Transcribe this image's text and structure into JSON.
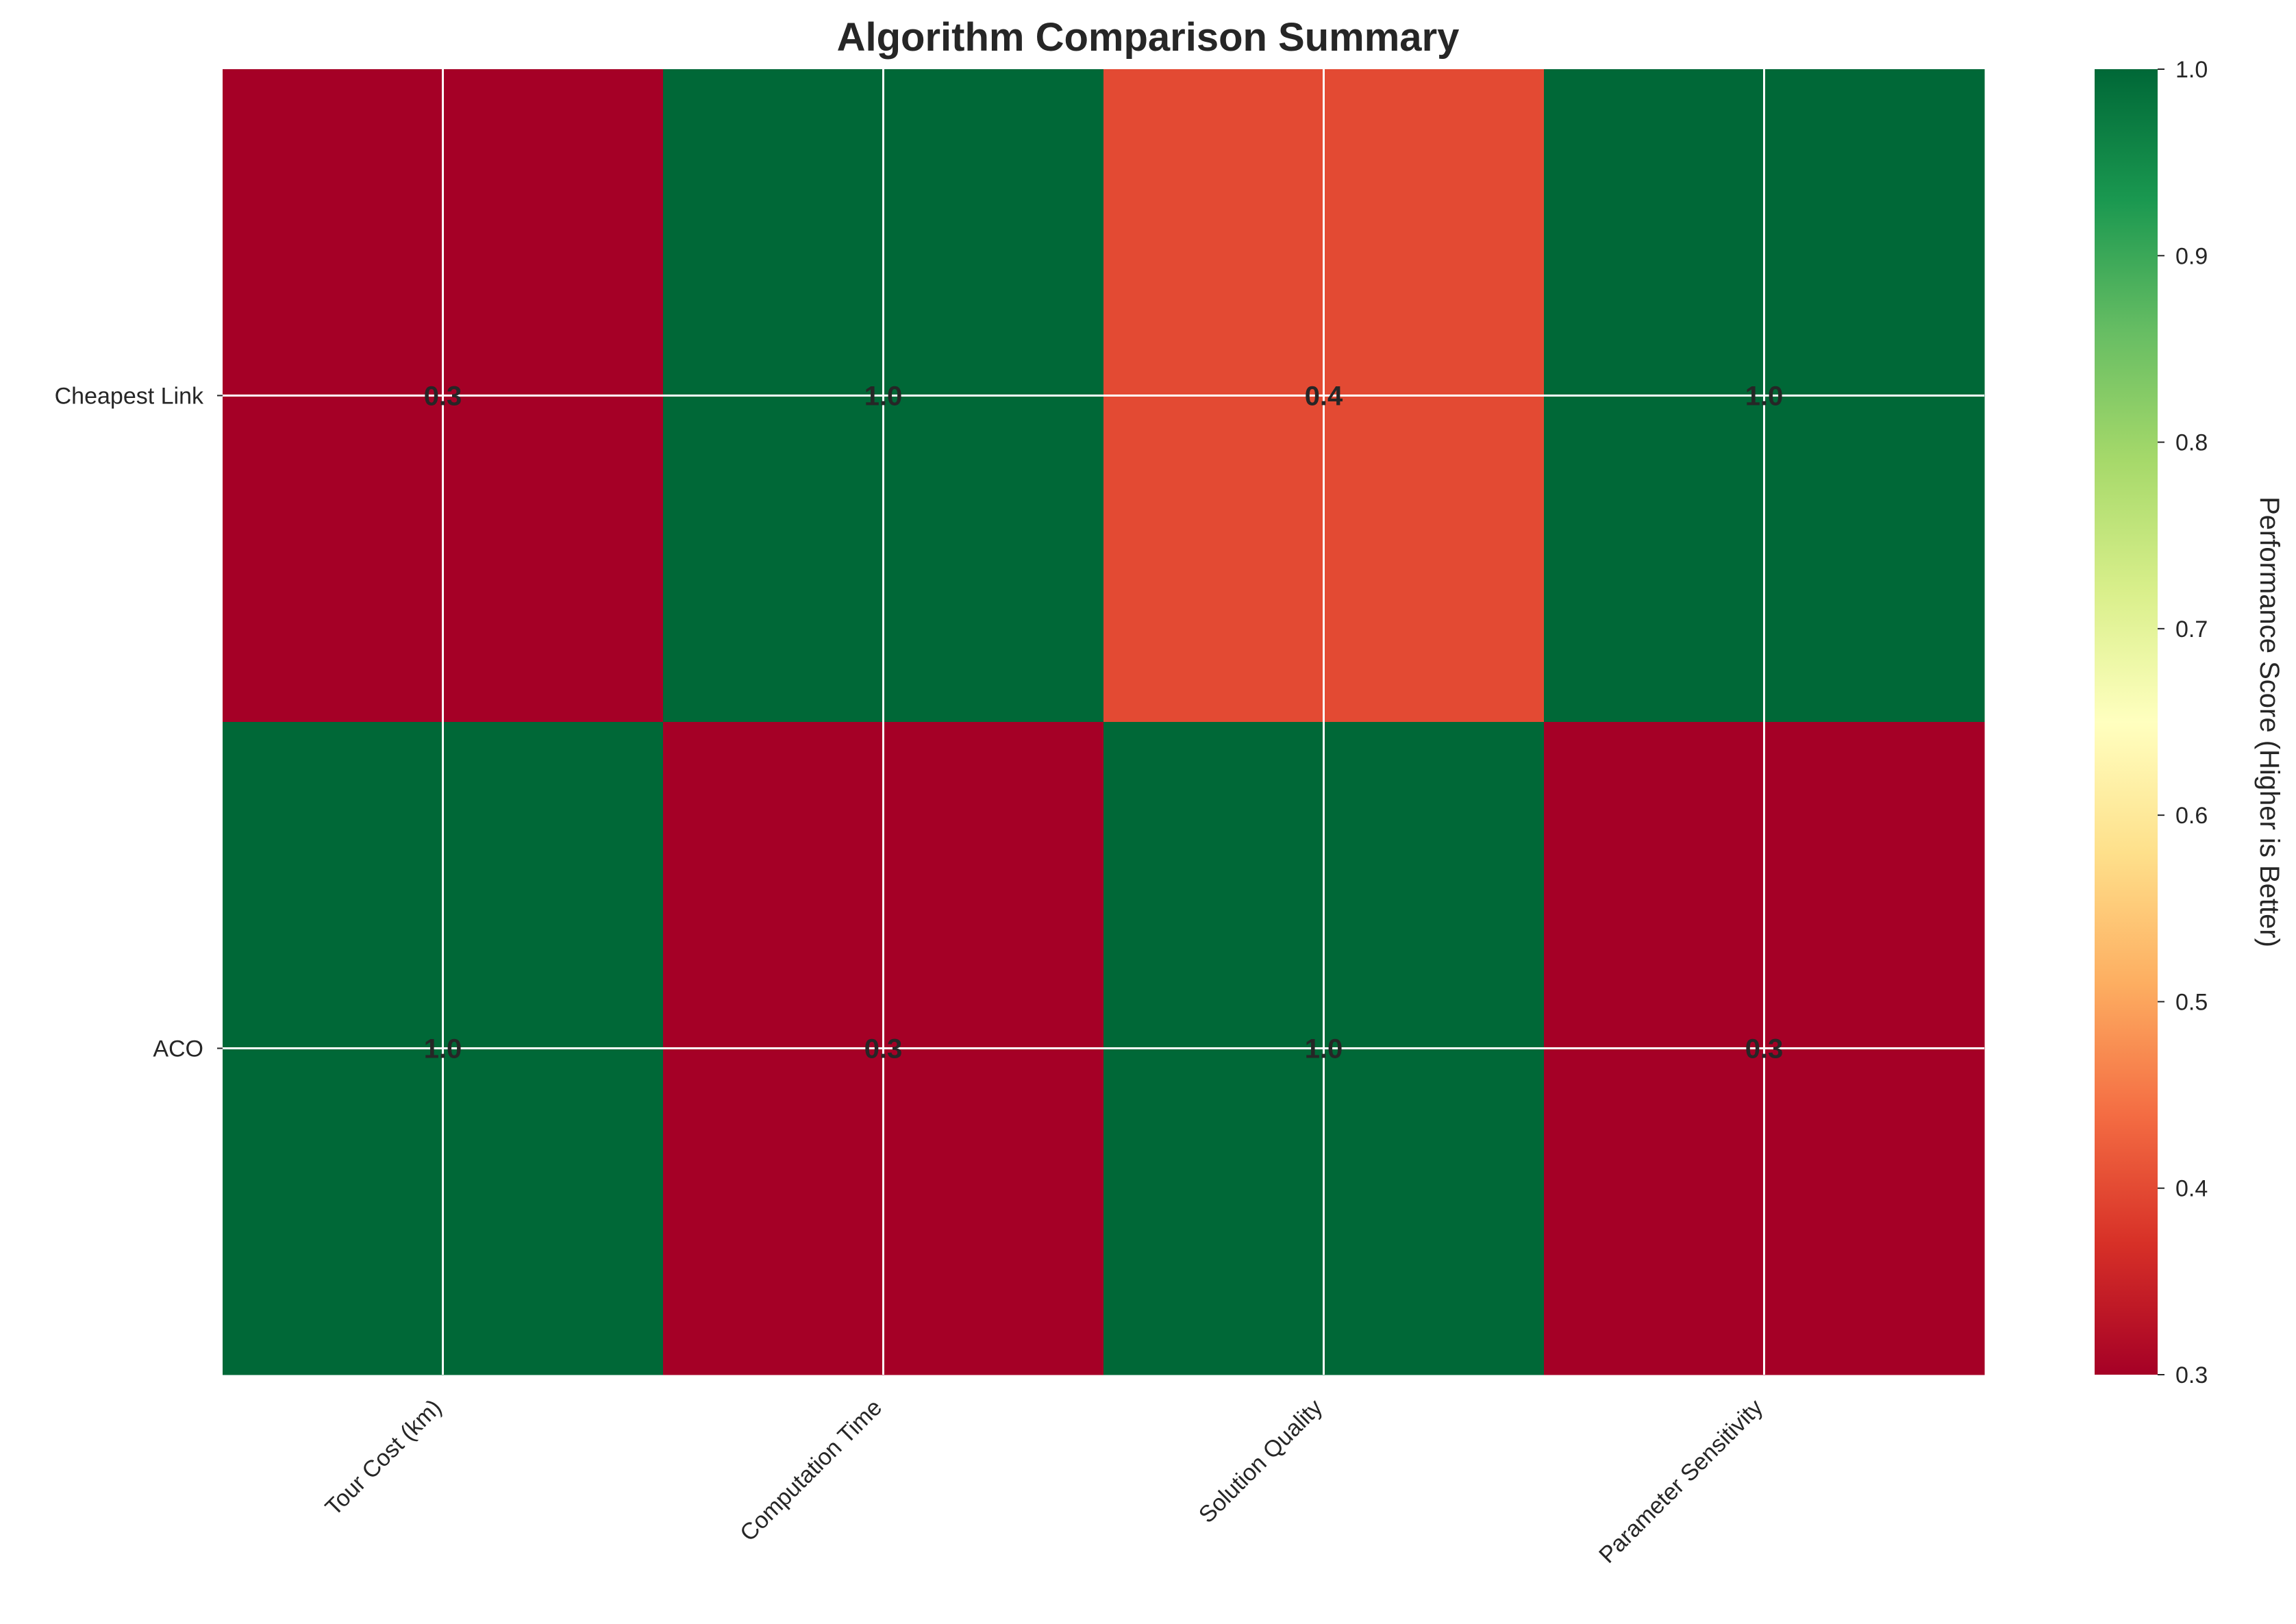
{
  "chart_data": {
    "type": "heatmap",
    "title": "Algorithm Comparison Summary",
    "rows": [
      "Cheapest Link",
      "ACO"
    ],
    "columns": [
      "Tour Cost (km)",
      "Computation Time",
      "Solution Quality",
      "Parameter Sensitivity"
    ],
    "values": [
      [
        0.3,
        1.0,
        0.4,
        1.0
      ],
      [
        1.0,
        0.3,
        1.0,
        0.3
      ]
    ],
    "value_labels": [
      [
        "0.3",
        "1.0",
        "0.4",
        "1.0"
      ],
      [
        "1.0",
        "0.3",
        "1.0",
        "0.3"
      ]
    ],
    "colormap": "RdYlGn",
    "colorbar": {
      "label": "Performance Score (Higher is Better)",
      "range": [
        0.3,
        1.0
      ],
      "ticks": [
        "0.3",
        "0.4",
        "0.5",
        "0.6",
        "0.7",
        "0.8",
        "0.9",
        "1.0"
      ]
    },
    "grid": true
  }
}
